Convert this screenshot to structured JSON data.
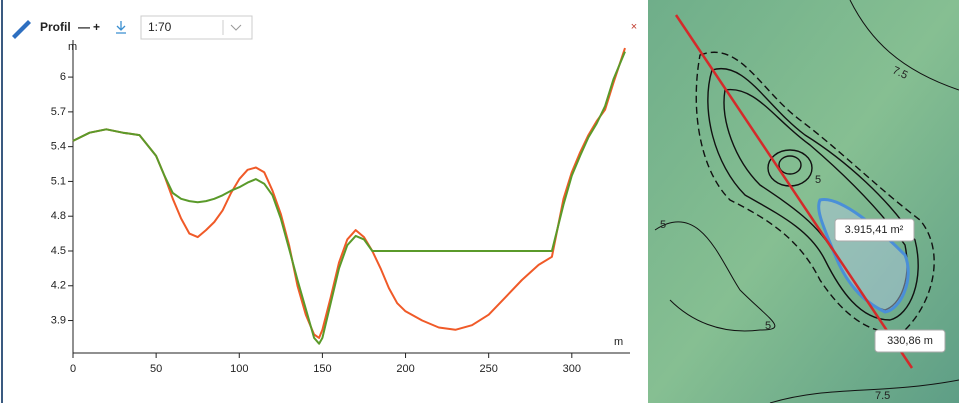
{
  "toolbar": {
    "title": "Profil",
    "minus": "—",
    "plus": "+",
    "scale": "1:70",
    "close": "×"
  },
  "chart_data": {
    "type": "line",
    "x_label": "m",
    "y_label": "m",
    "x": [
      0,
      10,
      20,
      30,
      40,
      50,
      55,
      60,
      65,
      70,
      75,
      80,
      85,
      90,
      95,
      100,
      105,
      110,
      115,
      120,
      125,
      130,
      135,
      140,
      145,
      148,
      150,
      155,
      160,
      165,
      170,
      175,
      180,
      185,
      190,
      195,
      200,
      210,
      220,
      230,
      240,
      250,
      260,
      270,
      280,
      288,
      295,
      300,
      305,
      310,
      315,
      320,
      325,
      332
    ],
    "series": [
      {
        "color": "#f05a28",
        "values": [
          5.45,
          5.52,
          5.55,
          5.52,
          5.5,
          5.32,
          5.15,
          4.95,
          4.78,
          4.65,
          4.62,
          4.68,
          4.75,
          4.85,
          5.0,
          5.12,
          5.2,
          5.22,
          5.18,
          5.02,
          4.82,
          4.55,
          4.2,
          3.95,
          3.78,
          3.75,
          3.82,
          4.1,
          4.4,
          4.6,
          4.68,
          4.62,
          4.5,
          4.35,
          4.18,
          4.05,
          3.98,
          3.9,
          3.84,
          3.82,
          3.86,
          3.95,
          4.1,
          4.25,
          4.38,
          4.45,
          4.95,
          5.18,
          5.35,
          5.5,
          5.62,
          5.72,
          5.95,
          6.25
        ]
      },
      {
        "color": "#5a9a2a",
        "values": [
          5.45,
          5.52,
          5.55,
          5.52,
          5.5,
          5.32,
          5.15,
          5.0,
          4.95,
          4.93,
          4.92,
          4.93,
          4.95,
          4.98,
          5.02,
          5.05,
          5.09,
          5.12,
          5.08,
          4.98,
          4.78,
          4.52,
          4.25,
          4.0,
          3.75,
          3.7,
          3.75,
          4.05,
          4.35,
          4.55,
          4.63,
          4.6,
          4.5,
          4.5,
          4.5,
          4.5,
          4.5,
          4.5,
          4.5,
          4.5,
          4.5,
          4.5,
          4.5,
          4.5,
          4.5,
          4.5,
          4.9,
          5.15,
          5.32,
          5.48,
          5.6,
          5.75,
          5.98,
          6.22
        ]
      }
    ],
    "xlim": [
      0,
      335
    ],
    "ylim": [
      3.62,
      6.32
    ],
    "xticks": [
      0,
      50,
      100,
      150,
      200,
      250,
      300
    ],
    "yticks": [
      3.9,
      4.2,
      4.5,
      4.8,
      5.1,
      5.4,
      5.7,
      6
    ]
  },
  "map": {
    "contour_labels": [
      "7.5",
      "5",
      "5",
      "5",
      "7.5"
    ],
    "area_label": "3.915,41 m²",
    "distance_label": "330,86 m"
  }
}
